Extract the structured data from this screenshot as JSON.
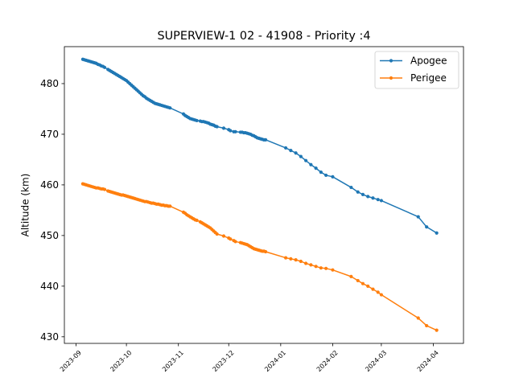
{
  "chart_data": {
    "type": "line",
    "title": "SUPERVIEW-1 02 - 41908 - Priority :4",
    "xlabel": "",
    "ylabel": "Altitude (km)",
    "x_axis_type": "date",
    "xlim": [
      "2023-08-25",
      "2024-04-19"
    ],
    "ylim": [
      428.7,
      487.3
    ],
    "x_ticks": [
      {
        "date": "2023-09-01",
        "label": "2023-09"
      },
      {
        "date": "2023-10-01",
        "label": "2023-10"
      },
      {
        "date": "2023-11-01",
        "label": "2023-11"
      },
      {
        "date": "2023-12-01",
        "label": "2023-12"
      },
      {
        "date": "2024-01-01",
        "label": "2024-01"
      },
      {
        "date": "2024-02-01",
        "label": "2024-02"
      },
      {
        "date": "2024-03-01",
        "label": "2024-03"
      },
      {
        "date": "2024-04-01",
        "label": "2024-04"
      }
    ],
    "y_ticks": [
      430,
      440,
      450,
      460,
      470,
      480
    ],
    "legend_position": "top-right",
    "grid": false,
    "series": [
      {
        "name": "Apogee",
        "color": "#1f77b4",
        "x": [
          "2023-09-05",
          "2023-09-06",
          "2023-09-07",
          "2023-09-08",
          "2023-09-09",
          "2023-09-10",
          "2023-09-11",
          "2023-09-12",
          "2023-09-13",
          "2023-09-14",
          "2023-09-15",
          "2023-09-16",
          "2023-09-17",
          "2023-09-18",
          "2023-09-20",
          "2023-09-21",
          "2023-09-22",
          "2023-09-23",
          "2023-09-24",
          "2023-09-25",
          "2023-09-26",
          "2023-09-27",
          "2023-09-28",
          "2023-09-29",
          "2023-09-30",
          "2023-10-01",
          "2023-10-02",
          "2023-10-03",
          "2023-10-04",
          "2023-10-05",
          "2023-10-06",
          "2023-10-07",
          "2023-10-08",
          "2023-10-09",
          "2023-10-10",
          "2023-10-11",
          "2023-10-12",
          "2023-10-13",
          "2023-10-14",
          "2023-10-15",
          "2023-10-16",
          "2023-10-17",
          "2023-10-18",
          "2023-10-19",
          "2023-10-20",
          "2023-10-21",
          "2023-10-22",
          "2023-10-23",
          "2023-10-24",
          "2023-10-25",
          "2023-10-26",
          "2023-10-27",
          "2023-11-04",
          "2023-11-05",
          "2023-11-06",
          "2023-11-07",
          "2023-11-08",
          "2023-11-09",
          "2023-11-10",
          "2023-11-11",
          "2023-11-12",
          "2023-11-14",
          "2023-11-15",
          "2023-11-16",
          "2023-11-17",
          "2023-11-18",
          "2023-11-19",
          "2023-11-20",
          "2023-11-21",
          "2023-11-22",
          "2023-11-23",
          "2023-11-24",
          "2023-11-28",
          "2023-12-01",
          "2023-12-02",
          "2023-12-04",
          "2023-12-05",
          "2023-12-08",
          "2023-12-09",
          "2023-12-10",
          "2023-12-11",
          "2023-12-12",
          "2023-12-13",
          "2023-12-14",
          "2023-12-15",
          "2023-12-16",
          "2023-12-17",
          "2023-12-18",
          "2023-12-19",
          "2023-12-20",
          "2023-12-21",
          "2023-12-22",
          "2023-12-23",
          "2024-01-04",
          "2024-01-07",
          "2024-01-10",
          "2024-01-13",
          "2024-01-16",
          "2024-01-19",
          "2024-01-22",
          "2024-01-25",
          "2024-01-28",
          "2024-02-01",
          "2024-02-12",
          "2024-02-16",
          "2024-02-19",
          "2024-02-22",
          "2024-02-25",
          "2024-02-28",
          "2024-03-01",
          "2024-03-23",
          "2024-03-28",
          "2024-04-03"
        ],
        "y": [
          484.8,
          484.7,
          484.6,
          484.5,
          484.4,
          484.3,
          484.2,
          484.1,
          484.0,
          483.8,
          483.7,
          483.5,
          483.4,
          483.2,
          482.8,
          482.6,
          482.4,
          482.2,
          482.0,
          481.8,
          481.6,
          481.4,
          481.2,
          481.0,
          480.8,
          480.6,
          480.3,
          480.0,
          479.7,
          479.4,
          479.1,
          478.8,
          478.5,
          478.2,
          477.9,
          477.6,
          477.4,
          477.1,
          476.9,
          476.7,
          476.5,
          476.3,
          476.1,
          476.0,
          475.9,
          475.8,
          475.7,
          475.6,
          475.5,
          475.4,
          475.3,
          475.2,
          474.0,
          473.7,
          473.5,
          473.3,
          473.1,
          473.0,
          472.9,
          472.8,
          472.7,
          472.6,
          472.5,
          472.5,
          472.4,
          472.3,
          472.2,
          472.0,
          471.9,
          471.8,
          471.6,
          471.5,
          471.2,
          470.9,
          470.7,
          470.5,
          470.5,
          470.4,
          470.4,
          470.3,
          470.3,
          470.2,
          470.1,
          470.0,
          469.8,
          469.7,
          469.5,
          469.3,
          469.2,
          469.1,
          469.0,
          468.9,
          468.9,
          467.3,
          466.8,
          466.3,
          465.6,
          464.8,
          464.0,
          463.3,
          462.5,
          461.9,
          461.6,
          459.5,
          458.6,
          458.1,
          457.7,
          457.4,
          457.1,
          456.9,
          453.7,
          451.7,
          450.5
        ]
      },
      {
        "name": "Perigee",
        "color": "#ff7f0e",
        "x": [
          "2023-09-05",
          "2023-09-06",
          "2023-09-07",
          "2023-09-08",
          "2023-09-09",
          "2023-09-10",
          "2023-09-11",
          "2023-09-12",
          "2023-09-13",
          "2023-09-14",
          "2023-09-15",
          "2023-09-16",
          "2023-09-17",
          "2023-09-18",
          "2023-09-20",
          "2023-09-21",
          "2023-09-22",
          "2023-09-23",
          "2023-09-24",
          "2023-09-25",
          "2023-09-26",
          "2023-09-27",
          "2023-09-28",
          "2023-09-29",
          "2023-09-30",
          "2023-10-01",
          "2023-10-02",
          "2023-10-03",
          "2023-10-04",
          "2023-10-05",
          "2023-10-06",
          "2023-10-07",
          "2023-10-08",
          "2023-10-09",
          "2023-10-10",
          "2023-10-11",
          "2023-10-12",
          "2023-10-13",
          "2023-10-14",
          "2023-10-15",
          "2023-10-16",
          "2023-10-17",
          "2023-10-18",
          "2023-10-19",
          "2023-10-20",
          "2023-10-21",
          "2023-10-22",
          "2023-10-23",
          "2023-10-24",
          "2023-10-25",
          "2023-10-26",
          "2023-10-27",
          "2023-11-04",
          "2023-11-05",
          "2023-11-06",
          "2023-11-07",
          "2023-11-08",
          "2023-11-09",
          "2023-11-10",
          "2023-11-11",
          "2023-11-12",
          "2023-11-14",
          "2023-11-15",
          "2023-11-16",
          "2023-11-17",
          "2023-11-18",
          "2023-11-19",
          "2023-11-20",
          "2023-11-21",
          "2023-11-22",
          "2023-11-23",
          "2023-11-24",
          "2023-11-28",
          "2023-12-01",
          "2023-12-02",
          "2023-12-04",
          "2023-12-05",
          "2023-12-08",
          "2023-12-09",
          "2023-12-10",
          "2023-12-11",
          "2023-12-12",
          "2023-12-13",
          "2023-12-14",
          "2023-12-15",
          "2023-12-16",
          "2023-12-17",
          "2023-12-18",
          "2023-12-19",
          "2023-12-20",
          "2023-12-21",
          "2023-12-22",
          "2023-12-23",
          "2024-01-04",
          "2024-01-07",
          "2024-01-10",
          "2024-01-13",
          "2024-01-16",
          "2024-01-19",
          "2024-01-22",
          "2024-01-25",
          "2024-01-28",
          "2024-02-01",
          "2024-02-12",
          "2024-02-16",
          "2024-02-19",
          "2024-02-22",
          "2024-02-25",
          "2024-02-28",
          "2024-03-01",
          "2024-03-23",
          "2024-03-28",
          "2024-04-03"
        ],
        "y": [
          460.2,
          460.1,
          460.0,
          459.9,
          459.8,
          459.7,
          459.6,
          459.5,
          459.4,
          459.4,
          459.3,
          459.2,
          459.2,
          459.1,
          458.8,
          458.7,
          458.6,
          458.5,
          458.4,
          458.3,
          458.2,
          458.1,
          458.0,
          458.0,
          457.9,
          457.8,
          457.7,
          457.6,
          457.5,
          457.4,
          457.3,
          457.2,
          457.1,
          457.0,
          456.9,
          456.8,
          456.7,
          456.7,
          456.6,
          456.5,
          456.4,
          456.4,
          456.3,
          456.2,
          456.2,
          456.1,
          456.0,
          456.0,
          455.9,
          455.9,
          455.8,
          455.8,
          454.6,
          454.4,
          454.1,
          453.9,
          453.7,
          453.5,
          453.3,
          453.1,
          453.0,
          452.7,
          452.5,
          452.3,
          452.1,
          451.9,
          451.7,
          451.5,
          451.2,
          450.9,
          450.6,
          450.3,
          449.9,
          449.5,
          449.3,
          449.0,
          448.8,
          448.6,
          448.5,
          448.4,
          448.3,
          448.2,
          448.0,
          447.8,
          447.6,
          447.4,
          447.3,
          447.2,
          447.1,
          447.0,
          446.9,
          446.9,
          446.8,
          445.6,
          445.4,
          445.2,
          444.9,
          444.5,
          444.2,
          443.9,
          443.6,
          443.5,
          443.2,
          441.9,
          441.1,
          440.5,
          440.0,
          439.4,
          438.8,
          438.3,
          433.7,
          432.2,
          431.3
        ]
      }
    ]
  }
}
